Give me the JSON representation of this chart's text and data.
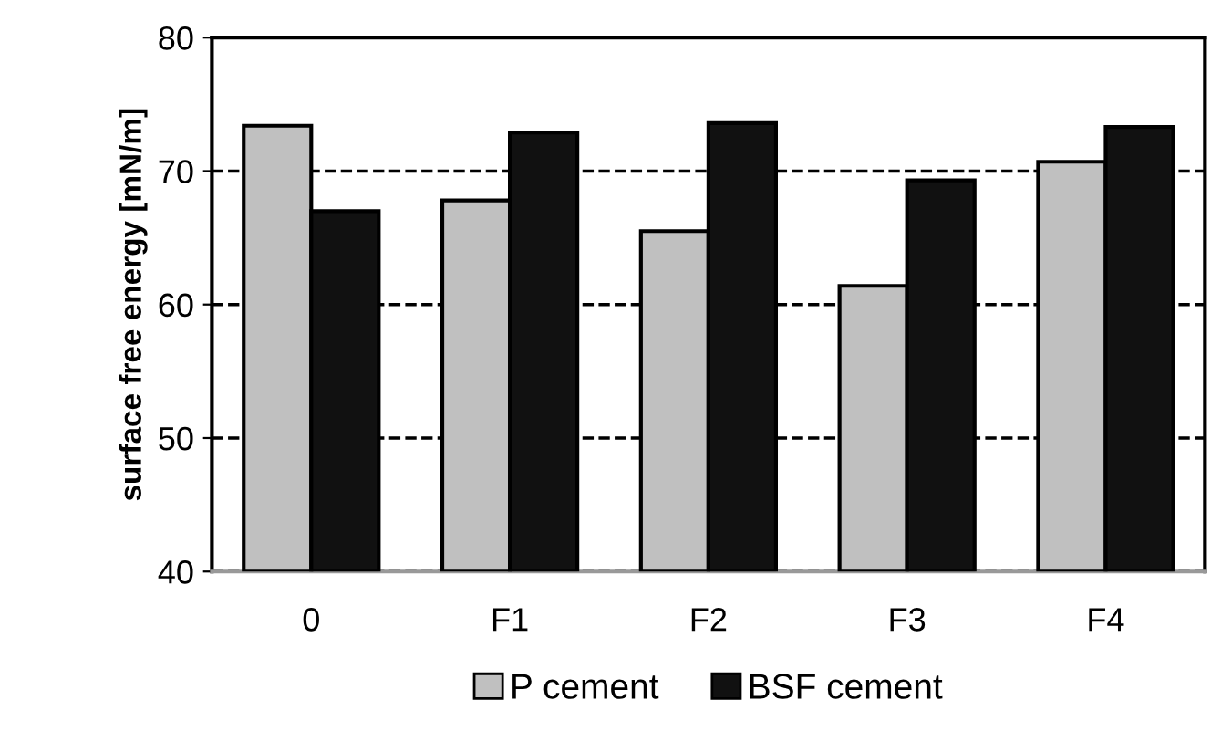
{
  "chart_data": {
    "type": "bar",
    "ylabel": "surface free energy [mN/m]",
    "categories": [
      "0",
      "F1",
      "F2",
      "F3",
      "F4"
    ],
    "series": [
      {
        "name": "P cement",
        "color": "#c0c0c0",
        "values": [
          73.4,
          67.8,
          65.5,
          61.4,
          70.7
        ]
      },
      {
        "name": "BSF cement",
        "color": "#111111",
        "values": [
          67.0,
          72.9,
          73.6,
          69.3,
          73.3
        ]
      }
    ],
    "ylim": [
      40,
      80
    ],
    "yticks": [
      40,
      50,
      60,
      70,
      80
    ],
    "grid": "y",
    "legend": "bottom"
  }
}
